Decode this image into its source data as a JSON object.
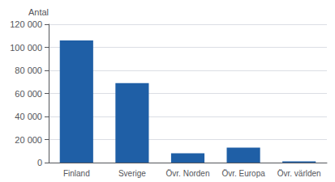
{
  "chart_data": {
    "type": "bar",
    "ylabel": "Antal",
    "categories": [
      "Finland",
      "Sverige",
      "Övr. Norden",
      "Övr. Europa",
      "Övr. världen"
    ],
    "values": [
      106000,
      69000,
      8000,
      13000,
      1000
    ],
    "color": "#1F5FA6",
    "ylim": [
      0,
      120000
    ],
    "yticks": [
      0,
      {
        "value": 20000,
        "label": "20 000"
      },
      {
        "value": 40000,
        "label": "40 000"
      },
      {
        "value": 60000,
        "label": "60 000"
      },
      {
        "value": 80000,
        "label": "80 000"
      },
      {
        "value": 100000,
        "label": "100 000"
      },
      {
        "value": 120000,
        "label": "120 000"
      }
    ],
    "grid": true
  }
}
